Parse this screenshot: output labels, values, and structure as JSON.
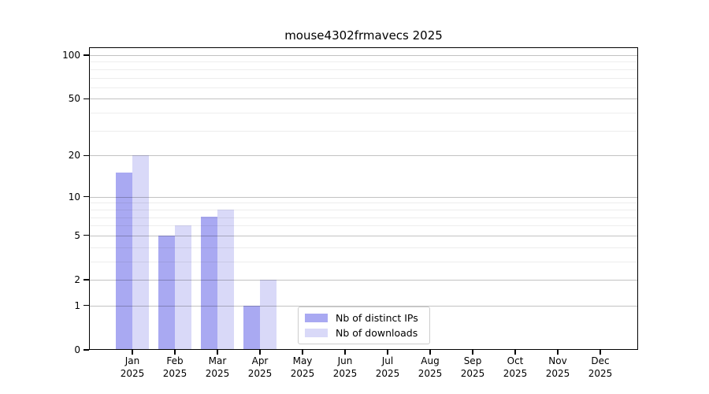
{
  "chart_data": {
    "type": "bar",
    "title": "mouse4302frmavecs 2025",
    "year_label": "2025",
    "categories": [
      "Jan",
      "Feb",
      "Mar",
      "Apr",
      "May",
      "Jun",
      "Jul",
      "Aug",
      "Sep",
      "Oct",
      "Nov",
      "Dec"
    ],
    "series": [
      {
        "name": "Nb of distinct IPs",
        "color": "#a9a9f2",
        "values": [
          15,
          5,
          7,
          1,
          0,
          0,
          0,
          0,
          0,
          0,
          0,
          0
        ]
      },
      {
        "name": "Nb of downloads",
        "color": "#d9d9f8",
        "values": [
          20,
          6,
          8,
          2,
          0,
          0,
          0,
          0,
          0,
          0,
          0,
          0
        ]
      }
    ],
    "xlabel": "",
    "ylabel": "",
    "y_scale": "log1p",
    "y_ticks": [
      0,
      1,
      2,
      5,
      10,
      20,
      50,
      100
    ],
    "y_minor_gridlines": [
      3,
      4,
      6,
      7,
      8,
      9,
      30,
      40,
      60,
      70,
      80,
      90
    ],
    "ylim": [
      0,
      113
    ],
    "grid": "both",
    "legend_position": "inside-bottom-center",
    "colors": {
      "major_grid": "rgba(0,0,0,0.24)",
      "minor_grid": "rgba(0,0,0,0.07)",
      "axis": "#000000",
      "background": "#ffffff"
    }
  }
}
